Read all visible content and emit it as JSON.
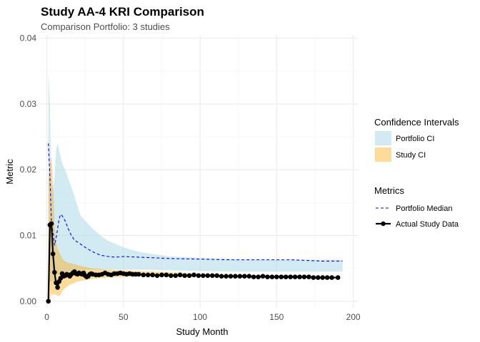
{
  "chart_data": {
    "type": "line",
    "title": "Study AA-4 KRI Comparison",
    "subtitle": "Comparison Portfolio: 3 studies",
    "xlabel": "Study Month",
    "ylabel": "Metric",
    "xlim": [
      -4,
      203
    ],
    "ylim": [
      -0.001,
      0.0405
    ],
    "x_ticks": [
      0,
      50,
      100,
      150,
      200
    ],
    "x_tick_labels": [
      "0",
      "50",
      "100",
      "150",
      "200"
    ],
    "y_ticks": [
      0.0,
      0.01,
      0.02,
      0.03,
      0.04
    ],
    "y_tick_labels": [
      "0.00",
      "0.01",
      "0.02",
      "0.03",
      "0.04"
    ],
    "grid": true,
    "legend_position": "right",
    "legends": {
      "confidence_intervals": {
        "title": "Confidence Intervals",
        "items": [
          {
            "label": "Portfolio CI",
            "color": "#add8e6"
          },
          {
            "label": "Study CI",
            "color": "#ffa500"
          }
        ]
      },
      "metrics": {
        "title": "Metrics",
        "items": [
          {
            "label": "Portfolio Median",
            "color": "#0000ff",
            "style": "dashed"
          },
          {
            "label": "Actual Study Data",
            "color": "#000000",
            "style": "solid-points"
          }
        ]
      }
    },
    "portfolio_ci": {
      "x": [
        1,
        2,
        3,
        4,
        5,
        6,
        7,
        8,
        10,
        12,
        15,
        18,
        22,
        26,
        30,
        35,
        40,
        50,
        60,
        80,
        100,
        120,
        150,
        170,
        193
      ],
      "upper": [
        0.035,
        0.03,
        0.018,
        0.017,
        0.019,
        0.023,
        0.024,
        0.023,
        0.021,
        0.02,
        0.018,
        0.016,
        0.013,
        0.012,
        0.011,
        0.01,
        0.0092,
        0.0082,
        0.0075,
        0.0068,
        0.0066,
        0.0064,
        0.0063,
        0.0063,
        0.0063
      ],
      "lower": [
        0.003,
        0.003,
        0.003,
        0.003,
        0.003,
        0.004,
        0.004,
        0.004,
        0.0042,
        0.0044,
        0.0045,
        0.0046,
        0.0047,
        0.0048,
        0.0048,
        0.0048,
        0.0048,
        0.0048,
        0.0048,
        0.0047,
        0.0046,
        0.0045,
        0.0045,
        0.0045,
        0.0045
      ]
    },
    "study_ci": {
      "x": [
        1,
        2,
        3,
        4,
        5,
        6,
        7,
        8,
        9,
        10,
        12,
        15,
        20,
        25,
        30,
        40,
        50,
        60,
        80,
        100
      ],
      "upper": [
        0.018,
        0.021,
        0.022,
        0.018,
        0.012,
        0.009,
        0.008,
        0.0075,
        0.007,
        0.0065,
        0.006,
        0.0058,
        0.0055,
        0.0052,
        0.005,
        0.0048,
        0.0047,
        0.0046,
        0.0044,
        0.0042
      ],
      "lower": [
        0.0,
        0.0,
        0.001,
        0.001,
        0.001,
        0.001,
        0.0008,
        0.0008,
        0.001,
        0.0015,
        0.002,
        0.0025,
        0.003,
        0.0032,
        0.0034,
        0.0036,
        0.0037,
        0.0038,
        0.0038,
        0.0038
      ]
    },
    "series": [
      {
        "name": "Portfolio Median",
        "x": [
          1,
          2,
          3,
          4,
          5,
          6,
          7,
          8,
          9,
          10,
          12,
          14,
          16,
          18,
          20,
          25,
          30,
          35,
          40,
          45,
          50,
          60,
          70,
          80,
          100,
          120,
          140,
          160,
          180,
          193
        ],
        "values": [
          0.024,
          0.019,
          0.012,
          0.0105,
          0.0085,
          0.0095,
          0.011,
          0.0125,
          0.0132,
          0.013,
          0.0122,
          0.011,
          0.01,
          0.0093,
          0.009,
          0.0082,
          0.0075,
          0.007,
          0.0068,
          0.0067,
          0.0068,
          0.0067,
          0.0066,
          0.0065,
          0.0064,
          0.0063,
          0.0063,
          0.0063,
          0.0061,
          0.0061
        ]
      },
      {
        "name": "Actual Study Data",
        "x": [
          1,
          2,
          3,
          4,
          5,
          6,
          7,
          8,
          9,
          10,
          11,
          12,
          13,
          14,
          15,
          16,
          17,
          18,
          19,
          20,
          21,
          22,
          23,
          24,
          25,
          26,
          27,
          28,
          29,
          30,
          32,
          34,
          36,
          38,
          40,
          42,
          44,
          46,
          48,
          50,
          52,
          54,
          56,
          58,
          60,
          63,
          66,
          69,
          72,
          75,
          78,
          81,
          84,
          87,
          90,
          93,
          96,
          99,
          102,
          105,
          108,
          111,
          114,
          117,
          120,
          123,
          126,
          129,
          132,
          135,
          138,
          141,
          144,
          147,
          150,
          153,
          156,
          159,
          162,
          165,
          168,
          171,
          174,
          177,
          180,
          183,
          186,
          190
        ],
        "values": [
          0.0,
          0.0116,
          0.0118,
          0.0072,
          0.0044,
          0.0028,
          0.0021,
          0.003,
          0.0035,
          0.0042,
          0.0038,
          0.0039,
          0.0041,
          0.004,
          0.0038,
          0.0041,
          0.0043,
          0.0045,
          0.0042,
          0.0041,
          0.0043,
          0.0042,
          0.0041,
          0.0043,
          0.0039,
          0.0037,
          0.0038,
          0.0041,
          0.0042,
          0.0041,
          0.004,
          0.004,
          0.0041,
          0.0043,
          0.0041,
          0.004,
          0.0042,
          0.0042,
          0.0043,
          0.0042,
          0.0041,
          0.0042,
          0.0041,
          0.0041,
          0.0041,
          0.004,
          0.004,
          0.004,
          0.0039,
          0.004,
          0.004,
          0.0039,
          0.0039,
          0.004,
          0.0039,
          0.0039,
          0.004,
          0.0039,
          0.0039,
          0.0039,
          0.0039,
          0.0039,
          0.0038,
          0.0038,
          0.0038,
          0.0038,
          0.0038,
          0.0038,
          0.0038,
          0.0037,
          0.0037,
          0.0038,
          0.0037,
          0.0037,
          0.0037,
          0.0037,
          0.0037,
          0.0037,
          0.0037,
          0.0037,
          0.0037,
          0.0037,
          0.0036,
          0.0036,
          0.0036,
          0.0036,
          0.0036,
          0.0036
        ]
      }
    ]
  }
}
